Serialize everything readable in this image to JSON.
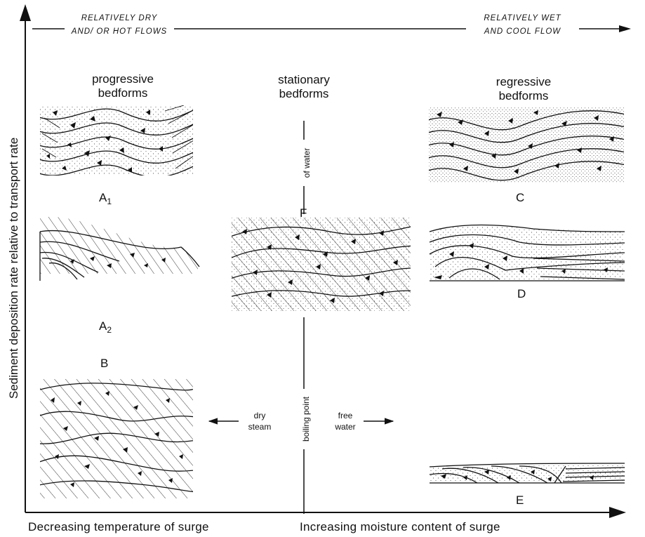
{
  "top_left_caption": [
    "RELATIVELY DRY",
    "AND/ OR HOT FLOWS"
  ],
  "top_right_caption": [
    "RELATIVELY WET",
    "AND COOL FLOW"
  ],
  "columns": {
    "progressive": [
      "progressive",
      "bedforms"
    ],
    "stationary": [
      "stationary",
      "bedforms"
    ],
    "regressive": [
      "regressive",
      "bedforms"
    ]
  },
  "panels": {
    "A1": {
      "letter": "A",
      "sub": "1"
    },
    "A2": {
      "letter": "A",
      "sub": "2"
    },
    "B": "B",
    "C": "C",
    "D": "D",
    "E": "E",
    "F": "F"
  },
  "labels": {
    "of_water": "of water",
    "boiling_point": "boiling point",
    "dry_steam": [
      "dry",
      "steam"
    ],
    "free_water": [
      "free",
      "water"
    ]
  },
  "axes": {
    "y": "Sediment deposition rate relative to transport rate",
    "x_left": "Decreasing temperature of surge",
    "x_right": "Increasing moisture content of surge"
  }
}
